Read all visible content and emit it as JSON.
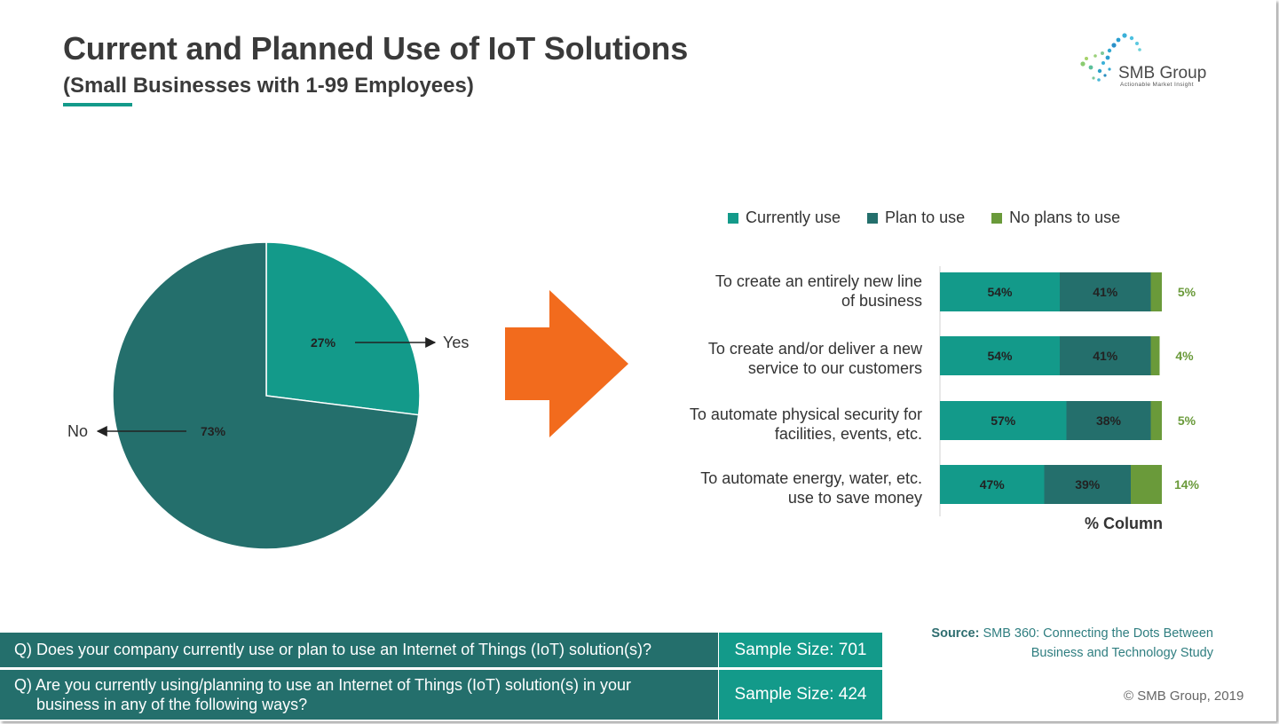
{
  "header": {
    "title": "Current and Planned Use of IoT Solutions",
    "subtitle": "(Small Businesses with 1-99 Employees)"
  },
  "logo": {
    "name": "SMB Group",
    "tagline": "Actionable Market Insight"
  },
  "colors": {
    "currently_use": "#139a8a",
    "plan_to_use": "#246f6c",
    "no_plans": "#6a9a3a",
    "arrow": "#f26b1d"
  },
  "chart_data": [
    {
      "type": "pie",
      "slices": [
        {
          "label": "Yes",
          "value": 27,
          "value_label": "27%"
        },
        {
          "label": "No",
          "value": 73,
          "value_label": "73%"
        }
      ]
    },
    {
      "type": "bar",
      "orientation": "horizontal",
      "stacked": true,
      "legend": {
        "position": "top",
        "entries": [
          "Currently use",
          "Plan to use",
          "No plans to use"
        ]
      },
      "xlabel": "% Column",
      "categories": [
        {
          "line1": "To create an entirely new line",
          "line2": "of business"
        },
        {
          "line1": "To create and/or deliver a new",
          "line2": "service to our customers"
        },
        {
          "line1": "To automate physical security for",
          "line2": "facilities, events, etc."
        },
        {
          "line1": "To automate energy, water, etc.",
          "line2": "use to save money"
        }
      ],
      "series": [
        {
          "name": "Currently use",
          "values": [
            54,
            54,
            57,
            47
          ],
          "labels": [
            "54%",
            "54%",
            "57%",
            "47%"
          ]
        },
        {
          "name": "Plan to use",
          "values": [
            41,
            41,
            38,
            39
          ],
          "labels": [
            "41%",
            "41%",
            "38%",
            "39%"
          ]
        },
        {
          "name": "No plans to use",
          "values": [
            5,
            4,
            5,
            14
          ],
          "labels": [
            "5%",
            "4%",
            "5%",
            "14%"
          ]
        }
      ]
    }
  ],
  "source": {
    "label": "Source:",
    "line1": "SMB 360: Connecting the Dots Between",
    "line2": "Business and Technology Study"
  },
  "copyright": "© SMB Group, 2019",
  "questions": [
    {
      "text": "Q) Does your company currently use or plan to use an Internet of Things (IoT) solution(s)?",
      "sample": "Sample Size: 701"
    },
    {
      "line1": "Q) Are you currently using/planning to use an Internet of Things (IoT) solution(s) in your",
      "line2": "business in any of the following ways?",
      "sample": "Sample Size: 424"
    }
  ]
}
